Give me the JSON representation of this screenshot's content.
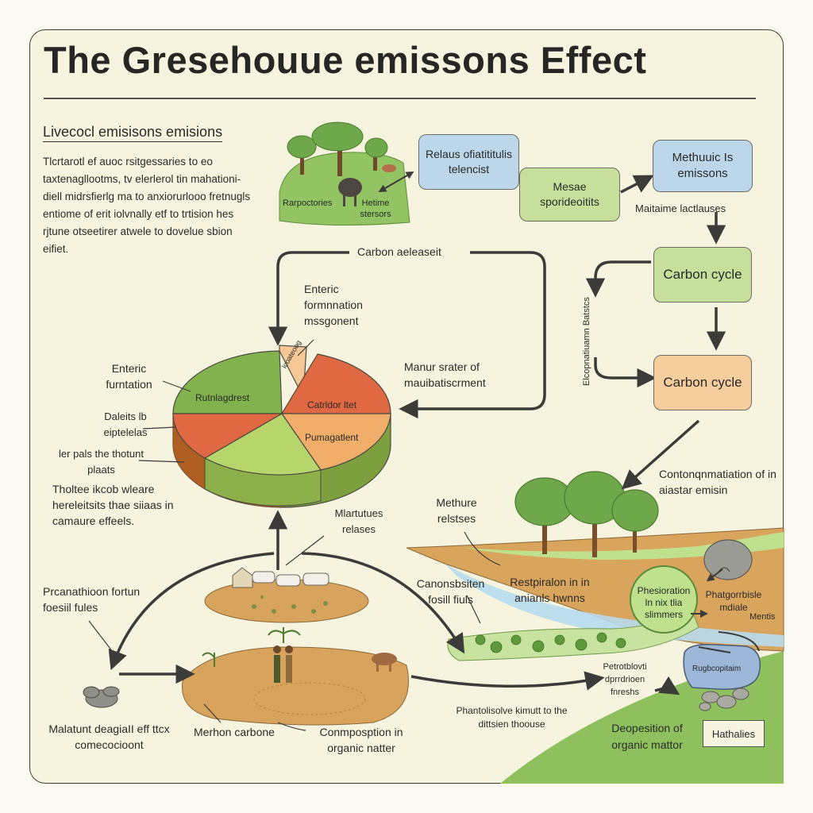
{
  "title": "The Gresehouue emissons Effect",
  "subhead": "Livecocl emisisons emisions",
  "paragraph": "Tlcrtarotl ef auoc rsitgessaries to eo taxtenagllootms, tv elerlerol tin mahationi-diell midrsfierlg ma to anxiorurlooo fretnugls entiome of erit iolvnally etf to trtision hes rjtune otseetirer atwele to dovelue sbion eifiet.",
  "top": {
    "farm_label_left": "Rarpoctories",
    "farm_label_right": "Hetime stersors",
    "box_release": "Relaus ofiatititulis telencist",
    "box_sources": "Mesae sporideoitits",
    "box_methane": "Methuuic Is emissons",
    "methane_caption": "Maitaime lactlauses"
  },
  "cycle": {
    "carbon_released": "Carbon aeleaseit",
    "carbon_cycle_1": "Carbon cycle",
    "carbon_cycle_2": "Carbon cycle",
    "vertical_label": "Elcopnatiuamn Batstcs",
    "manure": "Manur srater of mauibatiscrment",
    "contamination": "Contonqnmatiation of in aiastar emisin"
  },
  "pie": {
    "label_enteric_top": "Enteric formnnation mssgonent",
    "label_enteric_left": "Enteric furntation",
    "label_2": "Daleits lb eiptelelas",
    "label_3": "ler pals the thotunt plaats",
    "label_4": "Tholtee ikcob wleare hereleitsits thae siiaas in camaure effeels.",
    "slice_labels": [
      "Rutnlagdrest",
      "Icoateoog",
      "Catrldor ltet",
      "Pumagatlent",
      ""
    ],
    "colors": [
      "#82b24e",
      "#f6c896",
      "#e06842",
      "#f0ae6a",
      "#b6d66c"
    ]
  },
  "bottom": {
    "methane_releases": "Mlartutues relases",
    "methure_relstes": "Methure relstses",
    "production": "Prcanathioon fortun foesiil fules",
    "combustion": "Canonsbsiten fosill fiuls",
    "respiration": "Restpiralon in in anianls hwnns",
    "phesioration": "Phesioration ln nix tlia slimmers",
    "photosynthesis": "Phatgorrbisle mdiale",
    "mentis": "Mentis",
    "cattle_caption": "Malatunt deagiaII eff ttcx comecocioont",
    "methon": "Merhon carbone",
    "decomposition": "Conmposption in organic natter",
    "photolysis": "Phantolisolve kimutt to the dittsien thoouse",
    "petroleum": "Petrotblovti dprrdrioen fnreshs",
    "rock_label": "Rugbcopitaim",
    "deposition": "Deopesition of organic mattor",
    "habitat_tag": "Hathalies"
  }
}
